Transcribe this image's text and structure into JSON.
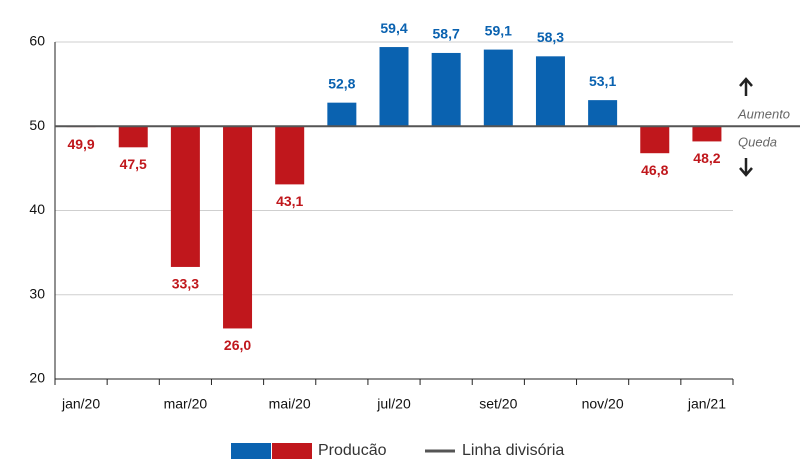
{
  "chart_data": {
    "type": "bar",
    "categories": [
      "jan/20",
      null,
      "mar/20",
      null,
      "mai/20",
      null,
      "jul/20",
      null,
      "set/20",
      null,
      "nov/20",
      null,
      "jan/21"
    ],
    "series": [
      {
        "name": "Producão",
        "colors": {
          "above": "#0a62b0",
          "below": "#c0171c"
        },
        "values": [
          49.9,
          47.5,
          33.3,
          26.0,
          43.1,
          52.8,
          59.4,
          58.7,
          59.1,
          58.3,
          53.1,
          46.8,
          48.2
        ],
        "value_labels": [
          "49,9",
          "47,5",
          "33,3",
          "26,0",
          "43,1",
          "52,8",
          "59,4",
          "58,7",
          "59,1",
          "58,3",
          "53,1",
          "46,8",
          "48,2"
        ]
      }
    ],
    "divider": {
      "value": 50,
      "label": "Linha divisória",
      "color": "#555555"
    },
    "annotations": {
      "above": "Aumento",
      "below": "Queda"
    },
    "ylim": [
      20,
      60
    ],
    "yticks": [
      20,
      30,
      40,
      50,
      60
    ],
    "grid": true
  }
}
